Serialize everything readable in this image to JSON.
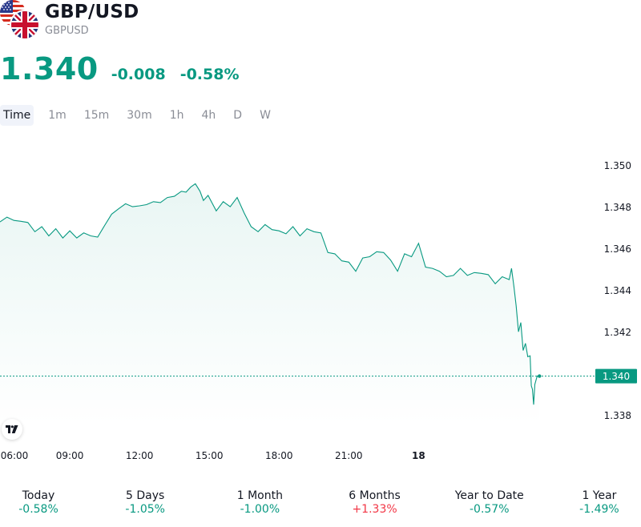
{
  "header": {
    "title": "GBP/USD",
    "ticker": "GBPUSD",
    "flags": [
      "us-flag-icon",
      "uk-flag-icon"
    ]
  },
  "quote": {
    "price": "1.340",
    "change": "-0.008",
    "change_percent": "-0.58%",
    "color": "#089981"
  },
  "timeframes": [
    {
      "label": "Time",
      "active": true
    },
    {
      "label": "1m"
    },
    {
      "label": "15m"
    },
    {
      "label": "30m"
    },
    {
      "label": "1h"
    },
    {
      "label": "4h"
    },
    {
      "label": "D"
    },
    {
      "label": "W"
    }
  ],
  "chart_data": {
    "type": "area",
    "y_ticks": [
      "1.350",
      "1.348",
      "1.346",
      "1.344",
      "1.342",
      "1.340",
      "1.338"
    ],
    "ylim": [
      1.3375,
      1.3508
    ],
    "x_ticks": [
      {
        "label": "06:00",
        "hour": 6
      },
      {
        "label": "09:00",
        "hour": 9
      },
      {
        "label": "12:00",
        "hour": 12
      },
      {
        "label": "15:00",
        "hour": 15
      },
      {
        "label": "18:00",
        "hour": 18
      },
      {
        "label": "21:00",
        "hour": 21
      },
      {
        "label": "18",
        "hour": 24,
        "bold": true
      }
    ],
    "xlim": [
      6,
      31.5
    ],
    "current_value": "1.340",
    "current_numeric": 1.3399,
    "line_color": "#089981",
    "series": [
      {
        "values": [
          [
            6.0,
            1.3473
          ],
          [
            6.3,
            1.3476
          ],
          [
            6.6,
            1.3473
          ],
          [
            6.9,
            1.3474
          ],
          [
            7.2,
            1.3472
          ],
          [
            7.5,
            1.3469
          ],
          [
            7.8,
            1.347
          ],
          [
            8.1,
            1.3467
          ],
          [
            8.4,
            1.3469
          ],
          [
            8.7,
            1.3466
          ],
          [
            9.0,
            1.3468
          ],
          [
            9.3,
            1.3466
          ],
          [
            9.6,
            1.3467
          ],
          [
            9.9,
            1.3467
          ],
          [
            10.2,
            1.3465
          ],
          [
            10.5,
            1.3472
          ],
          [
            10.8,
            1.3476
          ],
          [
            11.1,
            1.348
          ],
          [
            11.4,
            1.3481
          ],
          [
            11.7,
            1.3481
          ],
          [
            12.0,
            1.348
          ],
          [
            12.3,
            1.3482
          ],
          [
            12.6,
            1.3482
          ],
          [
            12.9,
            1.3483
          ],
          [
            13.2,
            1.3484
          ],
          [
            13.5,
            1.3486
          ],
          [
            13.8,
            1.3487
          ],
          [
            14.0,
            1.3488
          ],
          [
            14.2,
            1.3489
          ],
          [
            14.4,
            1.3492
          ],
          [
            14.6,
            1.3487
          ],
          [
            14.75,
            1.3484
          ],
          [
            14.95,
            1.3485
          ],
          [
            15.3,
            1.3479
          ],
          [
            15.6,
            1.3482
          ],
          [
            15.9,
            1.3481
          ],
          [
            16.2,
            1.3484
          ],
          [
            16.5,
            1.3478
          ],
          [
            16.8,
            1.347
          ],
          [
            17.1,
            1.3469
          ],
          [
            17.4,
            1.3471
          ],
          [
            17.7,
            1.347
          ],
          [
            18.0,
            1.3468
          ],
          [
            18.3,
            1.3468
          ],
          [
            18.6,
            1.347
          ],
          [
            18.9,
            1.3467
          ],
          [
            19.2,
            1.3469
          ],
          [
            19.5,
            1.3469
          ],
          [
            19.8,
            1.3467
          ],
          [
            20.1,
            1.3459
          ],
          [
            20.4,
            1.3457
          ],
          [
            20.7,
            1.3455
          ],
          [
            21.0,
            1.3453
          ],
          [
            21.3,
            1.345
          ],
          [
            21.6,
            1.3455
          ],
          [
            21.9,
            1.3457
          ],
          [
            22.2,
            1.3458
          ],
          [
            22.5,
            1.3459
          ],
          [
            22.8,
            1.3454
          ],
          [
            23.1,
            1.345
          ],
          [
            23.4,
            1.3457
          ],
          [
            23.7,
            1.3457
          ],
          [
            24.0,
            1.3462
          ],
          [
            24.3,
            1.3452
          ],
          [
            24.6,
            1.345
          ],
          [
            24.9,
            1.345
          ],
          [
            25.2,
            1.3446
          ],
          [
            25.5,
            1.3448
          ],
          [
            25.8,
            1.345
          ],
          [
            26.1,
            1.3448
          ],
          [
            26.4,
            1.3448
          ],
          [
            26.7,
            1.3449
          ],
          [
            27.0,
            1.3447
          ],
          [
            27.3,
            1.3444
          ],
          [
            27.6,
            1.3446
          ],
          [
            27.9,
            1.3446
          ],
          [
            28.0,
            1.345
          ],
          [
            28.1,
            1.3443
          ],
          [
            28.2,
            1.3432
          ],
          [
            28.3,
            1.3421
          ],
          [
            28.4,
            1.3424
          ],
          [
            28.5,
            1.3412
          ],
          [
            28.6,
            1.3414
          ],
          [
            28.7,
            1.3409
          ],
          [
            28.8,
            1.3408
          ],
          [
            28.85,
            1.3395
          ],
          [
            28.9,
            1.3392
          ],
          [
            28.95,
            1.3386
          ],
          [
            29.0,
            1.3395
          ],
          [
            29.1,
            1.3399
          ],
          [
            29.2,
            1.3399
          ]
        ]
      }
    ]
  },
  "performance": [
    {
      "label": "Today",
      "value": "-0.58%",
      "color": "#089981"
    },
    {
      "label": "5 Days",
      "value": "-1.05%",
      "color": "#089981"
    },
    {
      "label": "1 Month",
      "value": "-1.00%",
      "color": "#089981"
    },
    {
      "label": "6 Months",
      "value": "+1.33%",
      "color": "#f23645"
    },
    {
      "label": "Year to Date",
      "value": "-0.57%",
      "color": "#089981"
    },
    {
      "label": "1 Year",
      "value": "-1.49%",
      "color": "#089981"
    }
  ]
}
